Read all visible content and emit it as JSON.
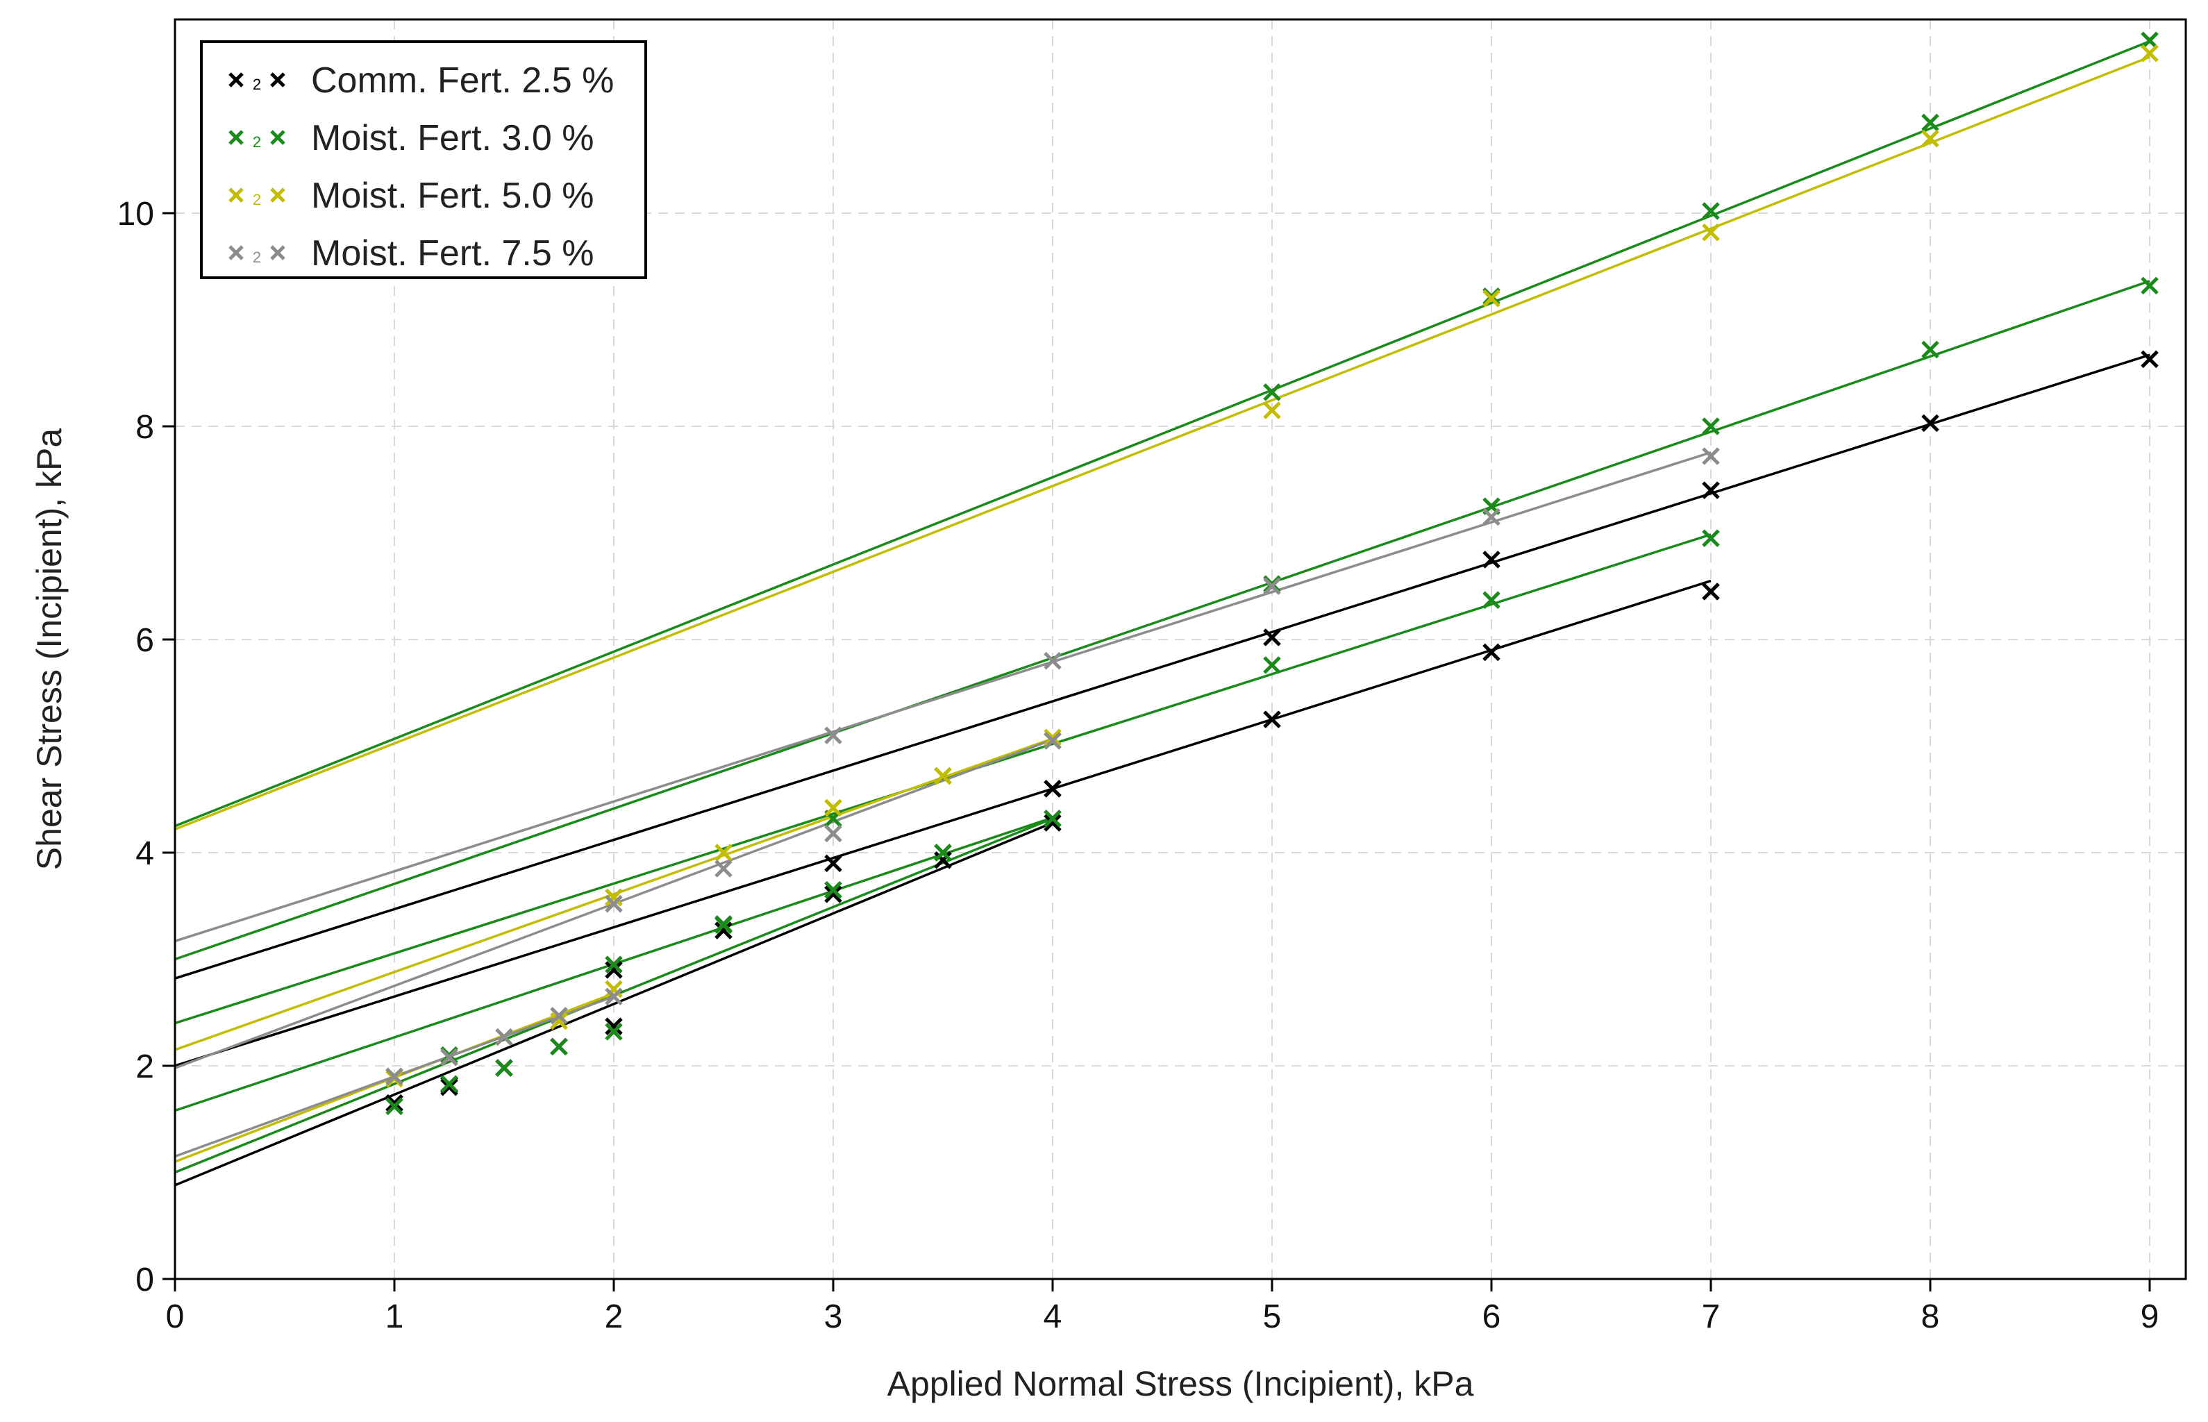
{
  "chart_data": {
    "type": "scatter",
    "xlabel": "Applied Normal Stress (Incipient), kPa",
    "ylabel": "Shear Stress (Incipient), kPa",
    "xlim": [
      0,
      9.2
    ],
    "ylim": [
      0,
      11.8
    ],
    "xticks": [
      0,
      1,
      2,
      3,
      4,
      5,
      6,
      7,
      8,
      9
    ],
    "yticks": [
      0,
      2,
      4,
      6,
      8,
      10
    ],
    "grid": true,
    "legend": {
      "placement": "top-left",
      "entries": [
        {
          "label": "Comm. Fert. 2.5 %",
          "color": "#000000"
        },
        {
          "label": "Moist. Fert. 3.0 %",
          "color": "#1a8a1a"
        },
        {
          "label": "Moist. Fert. 5.0 %",
          "color": "#c2bd00"
        },
        {
          "label": "Moist. Fert. 7.5 %",
          "color": "#8c8c8c"
        }
      ]
    },
    "series": [
      {
        "color": "#000000",
        "fit": {
          "intercept": 0.88,
          "slope": 0.85,
          "x_end": 4
        },
        "x": [
          1,
          1.25,
          1.5,
          1.75,
          2,
          2.5,
          3,
          3.5,
          4
        ],
        "y": [
          1.65,
          1.8,
          1.98,
          2.18,
          2.37,
          3.27,
          3.61,
          3.93,
          4.28
        ]
      },
      {
        "color": "#000000",
        "fit": {
          "intercept": 2.0,
          "slope": 0.65,
          "x_end": 7
        },
        "x": [
          1,
          1.25,
          2,
          3,
          4,
          5,
          6,
          7
        ],
        "y": [
          1.65,
          1.82,
          2.9,
          3.9,
          4.6,
          5.25,
          5.88,
          6.45
        ]
      },
      {
        "color": "#000000",
        "fit": {
          "intercept": 2.82,
          "slope": 0.65,
          "x_end": 9
        },
        "x": [
          4,
          5,
          6,
          7,
          8,
          9
        ],
        "y": [
          4.6,
          6.02,
          6.75,
          7.4,
          8.03,
          8.63
        ]
      },
      {
        "color": "#1a8a1a",
        "fit": {
          "intercept": 1.0,
          "slope": 0.83,
          "x_end": 4
        },
        "x": [
          1,
          1.25,
          1.5,
          1.75,
          2,
          2.5,
          3,
          3.5,
          4
        ],
        "y": [
          1.62,
          1.83,
          1.98,
          2.18,
          2.32,
          3.33,
          3.65,
          4.0,
          4.32
        ]
      },
      {
        "color": "#1a8a1a",
        "fit": {
          "intercept": 1.58,
          "slope": 0.687,
          "x_end": 4
        },
        "x": [
          1,
          1.25,
          2,
          2.5,
          3,
          3.5,
          4
        ],
        "y": [
          1.9,
          2.1,
          2.95,
          3.32,
          3.65,
          4.0,
          4.32
        ]
      },
      {
        "color": "#1a8a1a",
        "fit": {
          "intercept": 2.4,
          "slope": 0.655,
          "x_end": 7
        },
        "x": [
          2,
          3,
          3.5,
          4,
          5,
          6,
          7
        ],
        "y": [
          3.58,
          4.32,
          4.72,
          5.05,
          5.76,
          6.37,
          6.95
        ]
      },
      {
        "color": "#1a8a1a",
        "fit": {
          "intercept": 3.0,
          "slope": 0.707,
          "x_end": 9
        },
        "x": [
          5,
          6,
          7,
          8,
          9
        ],
        "y": [
          6.52,
          7.25,
          8.0,
          8.72,
          9.32
        ]
      },
      {
        "color": "#1a8a1a",
        "fit": {
          "intercept": 4.25,
          "slope": 0.818,
          "x_end": 9
        },
        "x": [
          5,
          6,
          7,
          8,
          9
        ],
        "y": [
          8.32,
          9.22,
          10.02,
          10.85,
          11.62
        ]
      },
      {
        "color": "#c2bd00",
        "fit": {
          "intercept": 1.1,
          "slope": 0.79,
          "x_end": 2
        },
        "x": [
          1,
          1.25,
          1.75,
          2
        ],
        "y": [
          1.88,
          2.08,
          2.42,
          2.72
        ]
      },
      {
        "color": "#c2bd00",
        "fit": {
          "intercept": 2.15,
          "slope": 0.73,
          "x_end": 4
        },
        "x": [
          2,
          2.5,
          3,
          3.5,
          4
        ],
        "y": [
          3.58,
          4.0,
          4.42,
          4.72,
          5.08
        ]
      },
      {
        "color": "#c2bd00",
        "fit": {
          "intercept": 4.22,
          "slope": 0.805,
          "x_end": 9
        },
        "x": [
          5,
          6,
          7,
          8,
          9
        ],
        "y": [
          8.15,
          9.2,
          9.82,
          10.7,
          11.5
        ]
      },
      {
        "color": "#8c8c8c",
        "fit": {
          "intercept": 1.15,
          "slope": 0.75,
          "x_end": 2
        },
        "x": [
          1,
          1.25,
          1.5,
          1.75,
          2
        ],
        "y": [
          1.9,
          2.08,
          2.27,
          2.47,
          2.65
        ]
      },
      {
        "color": "#8c8c8c",
        "fit": {
          "intercept": 1.98,
          "slope": 0.77,
          "x_end": 4
        },
        "x": [
          2,
          2.5,
          3,
          4
        ],
        "y": [
          3.52,
          3.85,
          4.18,
          5.05
        ]
      },
      {
        "color": "#8c8c8c",
        "fit": {
          "intercept": 3.17,
          "slope": 0.655,
          "x_end": 7
        },
        "x": [
          3,
          4,
          5,
          6,
          7
        ],
        "y": [
          5.1,
          5.8,
          6.5,
          7.15,
          7.72
        ]
      }
    ]
  }
}
